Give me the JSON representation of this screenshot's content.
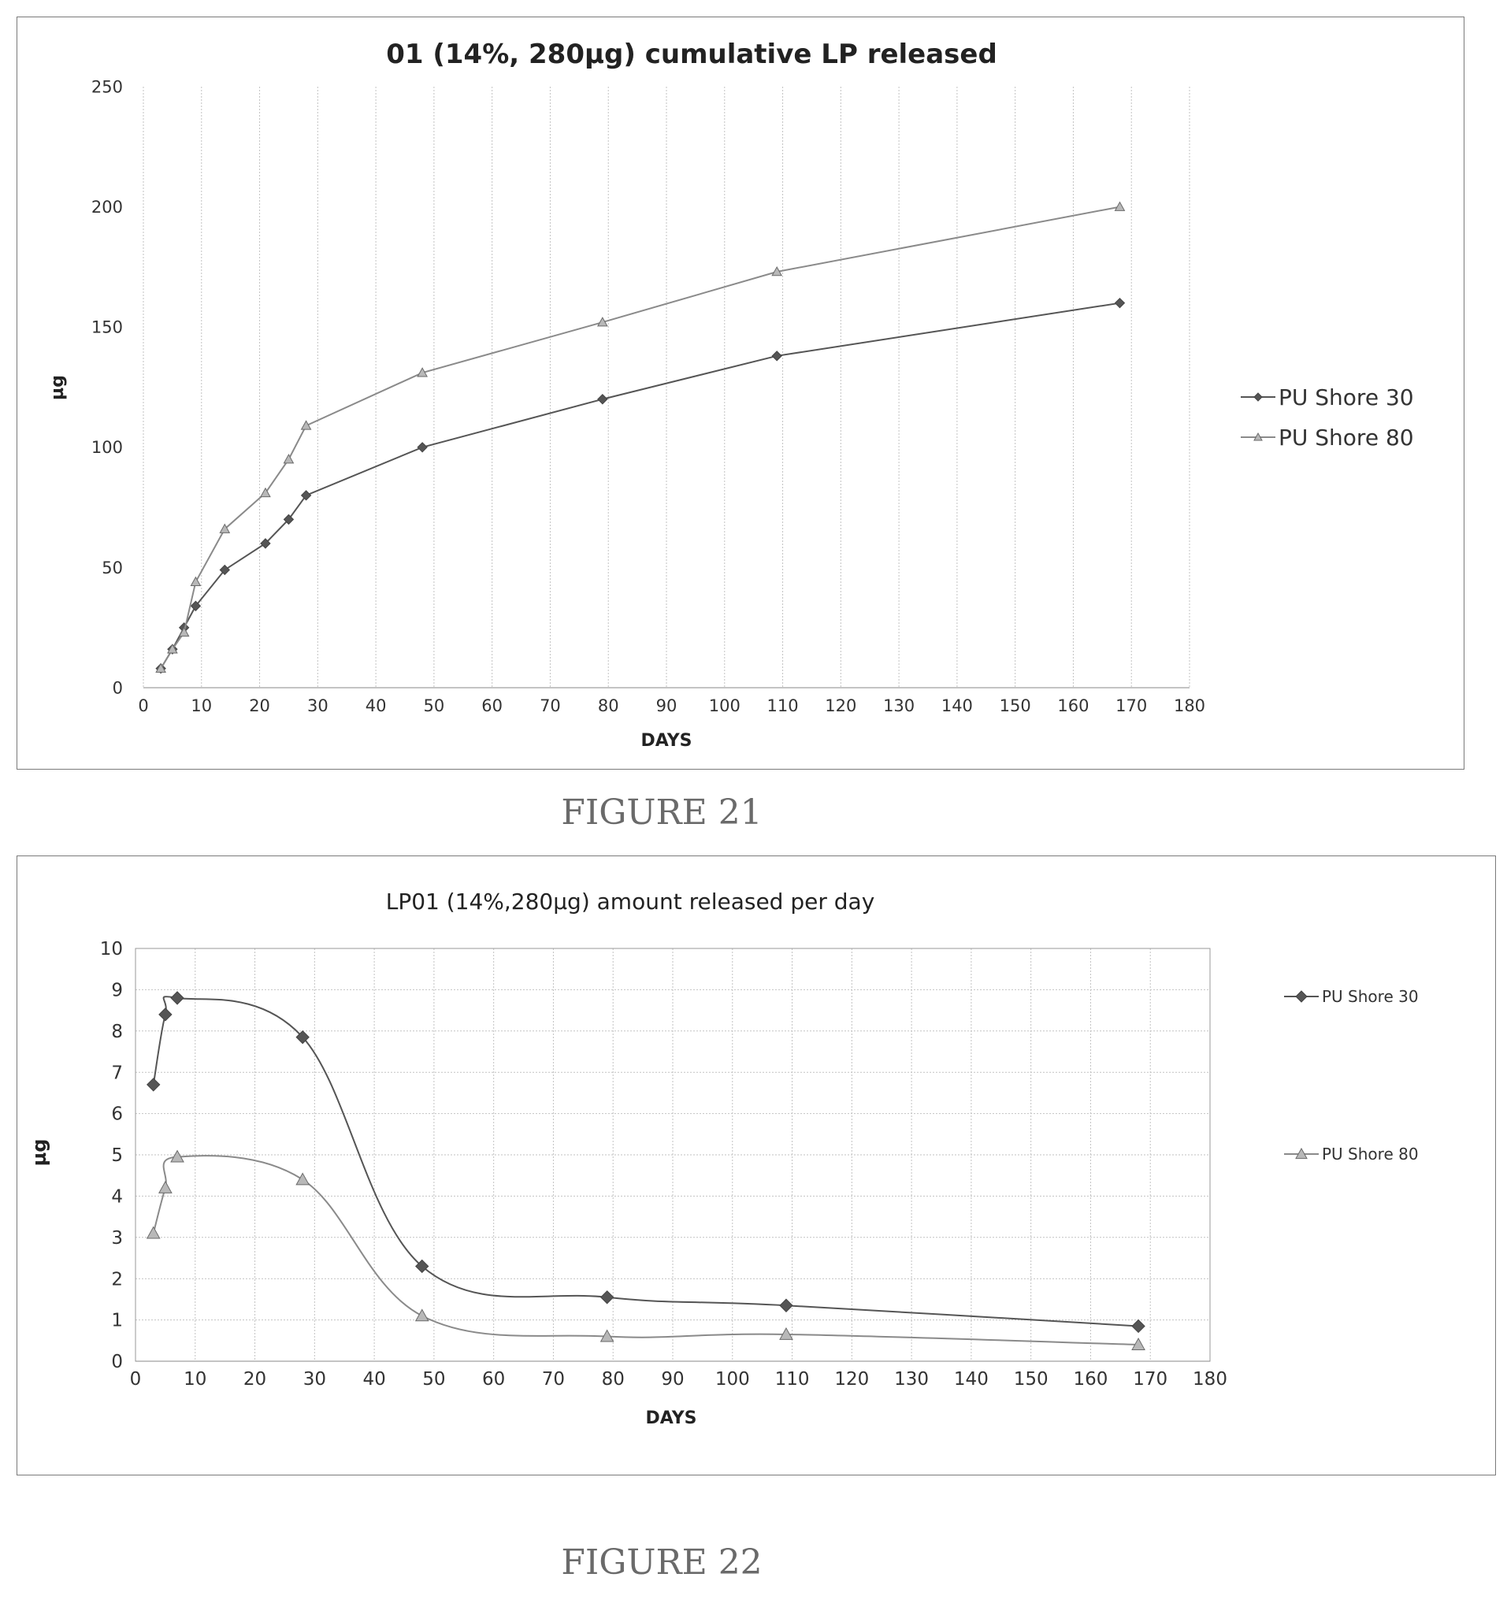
{
  "charts": [
    {
      "caption": "FIGURE 21",
      "chart_data": {
        "type": "line",
        "title": "01 (14%, 280µg) cumulative LP released",
        "xlabel": "DAYS",
        "ylabel": "µg",
        "xlim": [
          0,
          180
        ],
        "ylim": [
          0,
          250
        ],
        "xticks": [
          "0",
          "10",
          "20",
          "30",
          "40",
          "50",
          "60",
          "70",
          "80",
          "90",
          "100",
          "110",
          "120",
          "130",
          "140",
          "150",
          "160",
          "170",
          "180"
        ],
        "yticks": [
          "0",
          "50",
          "100",
          "150",
          "200",
          "250"
        ],
        "grid": "vertical",
        "legend_position": "right",
        "smooth": false,
        "series": [
          {
            "name": "PU Shore 30",
            "marker": "diamond",
            "color": "#555555",
            "x": [
              3,
              5,
              7,
              9,
              14,
              21,
              25,
              28,
              48,
              79,
              109,
              168
            ],
            "y": [
              8,
              16,
              25,
              34,
              49,
              60,
              70,
              80,
              100,
              120,
              138,
              160
            ]
          },
          {
            "name": "PU Shore 80",
            "marker": "triangle",
            "color": "#8a8a8a",
            "x": [
              3,
              5,
              7,
              9,
              14,
              21,
              25,
              28,
              48,
              79,
              109,
              168
            ],
            "y": [
              8,
              16,
              23,
              44,
              66,
              81,
              95,
              109,
              131,
              152,
              173,
              200
            ]
          }
        ]
      }
    },
    {
      "caption": "FIGURE 22",
      "chart_data": {
        "type": "line",
        "title": "LP01 (14%,280µg) amount released per day",
        "xlabel": "DAYS",
        "ylabel": "µg",
        "xlim": [
          0,
          180
        ],
        "ylim": [
          0,
          10
        ],
        "xticks": [
          "0",
          "10",
          "20",
          "30",
          "40",
          "50",
          "60",
          "70",
          "80",
          "90",
          "100",
          "110",
          "120",
          "130",
          "140",
          "150",
          "160",
          "170",
          "180"
        ],
        "yticks": [
          "0",
          "1",
          "2",
          "3",
          "4",
          "5",
          "6",
          "7",
          "8",
          "9",
          "10"
        ],
        "grid": "both",
        "legend_position": "right",
        "smooth": true,
        "series": [
          {
            "name": "PU Shore 30",
            "marker": "diamond",
            "color": "#555555",
            "x": [
              3,
              5,
              7,
              28,
              48,
              79,
              109,
              168
            ],
            "y": [
              6.7,
              8.4,
              8.8,
              7.85,
              2.3,
              1.55,
              1.35,
              0.85
            ]
          },
          {
            "name": "PU Shore 80",
            "marker": "triangle",
            "color": "#8a8a8a",
            "x": [
              3,
              5,
              7,
              28,
              48,
              79,
              109,
              168
            ],
            "y": [
              3.1,
              4.2,
              4.95,
              4.4,
              1.1,
              0.6,
              0.65,
              0.4
            ]
          }
        ]
      }
    }
  ]
}
